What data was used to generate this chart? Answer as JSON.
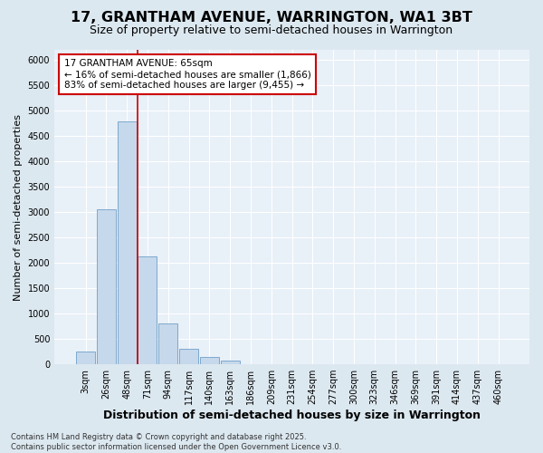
{
  "title": "17, GRANTHAM AVENUE, WARRINGTON, WA1 3BT",
  "subtitle": "Size of property relative to semi-detached houses in Warrington",
  "xlabel": "Distribution of semi-detached houses by size in Warrington",
  "ylabel": "Number of semi-detached properties",
  "categories": [
    "3sqm",
    "26sqm",
    "48sqm",
    "71sqm",
    "94sqm",
    "117sqm",
    "140sqm",
    "163sqm",
    "186sqm",
    "209sqm",
    "231sqm",
    "254sqm",
    "277sqm",
    "300sqm",
    "323sqm",
    "346sqm",
    "369sqm",
    "391sqm",
    "414sqm",
    "437sqm",
    "460sqm"
  ],
  "values": [
    255,
    3050,
    4790,
    2120,
    800,
    305,
    140,
    75,
    10,
    0,
    0,
    0,
    0,
    0,
    0,
    0,
    0,
    0,
    0,
    0,
    0
  ],
  "bar_color": "#c6d8eb",
  "bar_edge_color": "#6fa0c8",
  "property_line_color": "#cc0000",
  "property_line_x": 2.5,
  "annotation_text": "17 GRANTHAM AVENUE: 65sqm\n← 16% of semi-detached houses are smaller (1,866)\n83% of semi-detached houses are larger (9,455) →",
  "annotation_box_facecolor": "#ffffff",
  "annotation_box_edgecolor": "#cc0000",
  "ylim": [
    0,
    6200
  ],
  "yticks": [
    0,
    500,
    1000,
    1500,
    2000,
    2500,
    3000,
    3500,
    4000,
    4500,
    5000,
    5500,
    6000
  ],
  "footnote": "Contains HM Land Registry data © Crown copyright and database right 2025.\nContains public sector information licensed under the Open Government Licence v3.0.",
  "bg_color": "#dce8f0",
  "plot_bg_color": "#e8f0f8",
  "grid_color": "#ffffff",
  "title_fontsize": 11.5,
  "subtitle_fontsize": 9,
  "tick_fontsize": 7,
  "ylabel_fontsize": 8,
  "xlabel_fontsize": 9,
  "annotation_fontsize": 7.5,
  "footnote_fontsize": 6
}
